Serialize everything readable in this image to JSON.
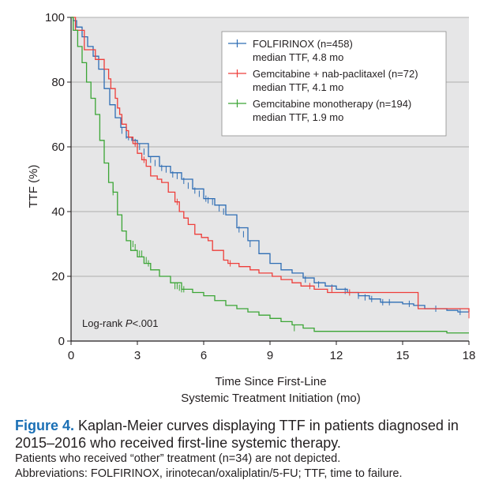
{
  "chart_data": {
    "type": "line",
    "subtype": "kaplan-meier",
    "ylabel": "TTF (%)",
    "xlabel_line1": "Time Since First-Line",
    "xlabel_line2": "Systemic Treatment Initiation (mo)",
    "xlim": [
      0,
      18
    ],
    "ylim": [
      0,
      100
    ],
    "xticks": [
      0,
      3,
      6,
      9,
      12,
      15,
      18
    ],
    "yticks": [
      0,
      20,
      40,
      60,
      80,
      100
    ],
    "grid": "horizontal",
    "background": "#e6e6e7",
    "legend_position": "top-right",
    "annotation_prefix": "Log-rank ",
    "annotation_italic": "P",
    "annotation_suffix": "<.001",
    "series": [
      {
        "name": "FOLFIRINOX (n=458)",
        "subtitle": "median TTF, 4.8 mo",
        "color": "#2e6db4",
        "x": [
          0,
          0.1,
          0.25,
          0.5,
          0.75,
          1.0,
          1.25,
          1.5,
          1.75,
          2.0,
          2.25,
          2.5,
          2.75,
          3.0,
          3.5,
          4.0,
          4.5,
          5.0,
          5.5,
          6.0,
          6.5,
          7.0,
          7.5,
          8.0,
          8.5,
          9.0,
          9.5,
          10.0,
          10.5,
          11.0,
          11.5,
          12.0,
          12.5,
          13.0,
          13.5,
          14.0,
          14.5,
          15.0,
          15.5,
          16.0,
          16.5,
          17.0,
          17.5,
          18.0
        ],
        "y": [
          100,
          99,
          97,
          94,
          91,
          88,
          84,
          78,
          73,
          69,
          66,
          63,
          62,
          61,
          57,
          54,
          52,
          50,
          47,
          44,
          42,
          39,
          35,
          31,
          27,
          24,
          22,
          21,
          19.5,
          18,
          17,
          16,
          15,
          14,
          13,
          12,
          12,
          11.5,
          11,
          10,
          10,
          9.5,
          9,
          9
        ],
        "censor_x": [
          2.3,
          2.5,
          2.6,
          2.8,
          2.9,
          3.1,
          3.3,
          3.6,
          3.8,
          4.1,
          4.3,
          4.6,
          4.8,
          5.1,
          5.3,
          5.6,
          5.8,
          6.1,
          6.2,
          6.4,
          6.7,
          6.9,
          7.6,
          7.8,
          8.1,
          10.6,
          11.2,
          11.8,
          12.4,
          13.0,
          13.3,
          13.6,
          14.1,
          14.4,
          15.3,
          16.5,
          17.6
        ],
        "censor_y": [
          65,
          63.5,
          63,
          62,
          61.5,
          60,
          58.5,
          56,
          55,
          53.5,
          53,
          51.5,
          51,
          49.5,
          48,
          46.5,
          45.5,
          44,
          43.5,
          43,
          41,
          40,
          34.5,
          33,
          30,
          19,
          17.5,
          16.5,
          15.5,
          14,
          13.5,
          13,
          12,
          12,
          11.5,
          10,
          9
        ]
      },
      {
        "name": "Gemcitabine + nab-paclitaxel (n=72)",
        "subtitle": "median TTF, 4.1 mo",
        "color": "#ee3e3a",
        "x": [
          0,
          0.2,
          0.6,
          0.6,
          1.1,
          1.1,
          1.5,
          1.5,
          1.7,
          1.7,
          1.8,
          1.8,
          2.0,
          2.0,
          2.1,
          2.1,
          2.2,
          2.2,
          2.3,
          2.3,
          2.5,
          2.5,
          2.6,
          2.6,
          2.8,
          2.8,
          3.0,
          3.0,
          3.2,
          3.2,
          3.4,
          3.4,
          3.6,
          3.6,
          3.9,
          3.9,
          4.1,
          4.1,
          4.4,
          4.4,
          4.7,
          4.7,
          4.9,
          4.9,
          5.1,
          5.1,
          5.3,
          5.3,
          5.6,
          5.6,
          5.9,
          5.9,
          6.2,
          6.2,
          6.4,
          6.4,
          6.6,
          6.6,
          6.9,
          6.9,
          7.1,
          7.1,
          7.3,
          7.3,
          7.6,
          7.6,
          8.1,
          8.1,
          8.5,
          8.5,
          9.1,
          9.1,
          9.5,
          9.5,
          10.0,
          10.0,
          10.4,
          10.4,
          11.0,
          11.0,
          11.6,
          11.6,
          12.3,
          12.3,
          15.7,
          15.7,
          18.0
        ],
        "y": [
          100,
          96,
          96,
          90,
          90,
          87,
          87,
          84,
          84,
          81,
          81,
          78,
          78,
          75,
          75,
          72,
          72,
          70,
          70,
          67,
          67,
          65,
          65,
          63,
          63,
          61,
          61,
          58,
          58,
          56,
          56,
          54,
          54,
          51,
          51,
          50,
          50,
          49,
          49,
          46,
          46,
          43,
          43,
          40,
          40,
          38,
          38,
          36,
          36,
          33,
          33,
          32,
          32,
          31,
          31,
          28,
          28,
          28,
          28,
          25,
          25,
          24,
          24,
          24,
          24,
          23,
          23,
          22,
          22,
          21,
          21,
          20,
          20,
          19,
          19,
          18,
          18,
          17,
          17,
          16,
          16,
          15,
          15,
          15,
          15,
          10,
          9
        ],
        "censor_x": [
          2.9,
          3.3,
          4.8,
          7.2,
          10.8,
          11.8,
          12.6,
          18.0
        ],
        "censor_y": [
          61,
          56,
          43,
          24,
          17,
          16,
          15,
          8
        ]
      },
      {
        "name": "Gemcitabine monotherapy (n=194)",
        "subtitle": "median TTF, 1.9 mo",
        "color": "#3ba535",
        "x": [
          0,
          0.1,
          0.3,
          0.5,
          0.7,
          0.9,
          1.1,
          1.3,
          1.5,
          1.7,
          1.9,
          2.1,
          2.3,
          2.5,
          2.7,
          3.0,
          3.3,
          3.6,
          4.0,
          4.5,
          5.0,
          5.5,
          6.0,
          6.5,
          7.0,
          7.5,
          8.0,
          8.5,
          9.0,
          9.5,
          10.0,
          10.5,
          11.0,
          12.0,
          13.0,
          14.0,
          15.0,
          16.0,
          17.0,
          18.0
        ],
        "y": [
          100,
          96,
          91,
          86,
          80,
          75,
          70,
          62,
          55,
          49,
          46,
          39,
          34,
          31,
          28,
          26,
          24,
          22,
          20,
          18,
          16,
          15,
          14,
          12.5,
          11,
          10,
          9,
          8,
          7,
          6,
          5,
          4,
          3,
          3,
          3,
          3,
          3,
          3,
          2.5,
          2.5
        ],
        "censor_x": [
          1.9,
          2.8,
          2.9,
          3.1,
          3.2,
          3.4,
          3.5,
          4.7,
          4.8,
          4.9,
          5.0,
          5.1,
          10.1
        ],
        "censor_y": [
          46,
          30,
          29,
          27,
          27,
          25,
          24,
          17,
          17,
          16.5,
          16,
          16,
          4
        ]
      }
    ]
  },
  "caption": {
    "figure_label": "Figure 4.",
    "figure_text": " Kaplan-Meier curves displaying TTF in patients diagnosed in 2015–2016 who received first-line systemic therapy.",
    "note1": "Patients who received “other” treatment (n=34) are not depicted.",
    "note2": "Abbreviations: FOLFIRINOX, irinotecan/oxaliplatin/5-FU; TTF, time to failure."
  }
}
